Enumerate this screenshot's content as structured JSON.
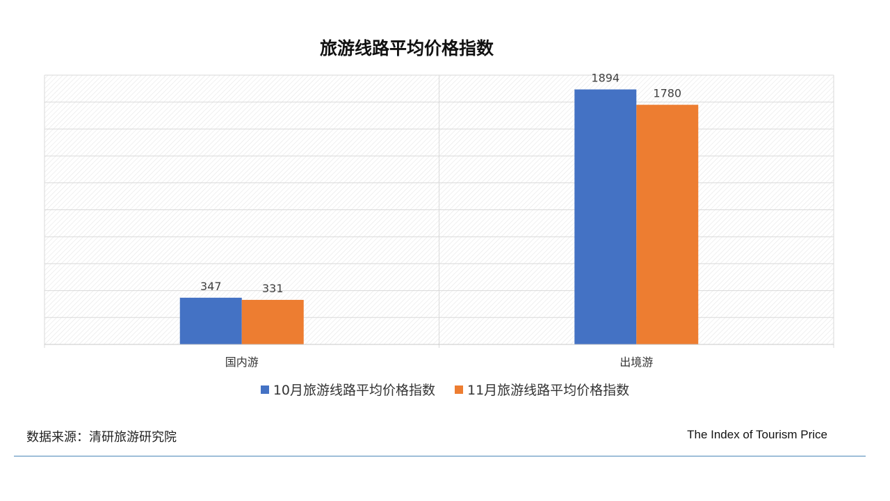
{
  "page": {
    "title": "旅游线路平均价格指数",
    "source": "数据来源：清研旅游研究院",
    "footer_en": "The Index of Tourism Price"
  },
  "colors": {
    "series1": "#4472C4",
    "series2": "#ED7D31",
    "grid": "#d9d9d9",
    "footer_line": "#4a86b8"
  },
  "chart_data": {
    "type": "bar",
    "title": "旅游线路平均价格指数",
    "categories": [
      "国内游",
      "出境游"
    ],
    "series": [
      {
        "name": "10月旅游线路平均价格指数",
        "values": [
          347,
          1894
        ]
      },
      {
        "name": "11月旅游线路平均价格指数",
        "values": [
          331,
          1780
        ]
      }
    ],
    "data_labels": true,
    "ylim": [
      0,
      2000
    ],
    "y_axis_visible": false,
    "grid": true,
    "legend": "bottom"
  }
}
